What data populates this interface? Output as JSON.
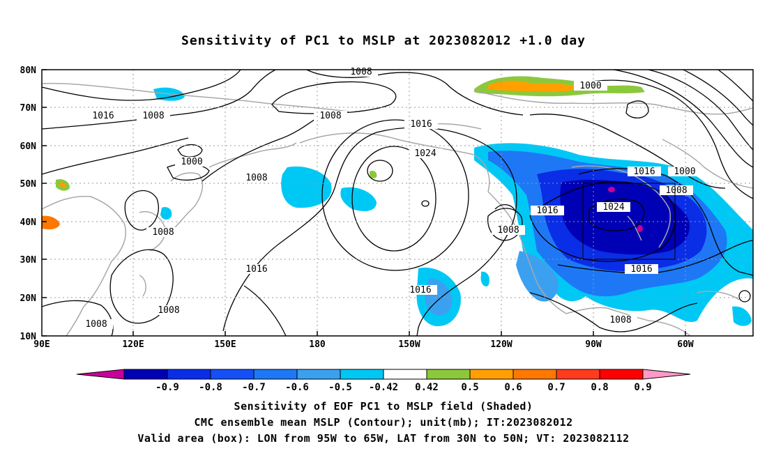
{
  "title": "Sensitivity of PC1 to MSLP at 2023082012 +1.0 day",
  "map": {
    "lat_labels": [
      "80N",
      "70N",
      "60N",
      "50N",
      "40N",
      "30N",
      "20N",
      "10N"
    ],
    "lon_labels": [
      "90E",
      "120E",
      "150E",
      "180",
      "150W",
      "120W",
      "90W",
      "60W"
    ],
    "box": {
      "lon_from": "95W",
      "lon_to": "65W",
      "lat_from": "30N",
      "lat_to": "50N"
    },
    "contour_labels": [
      {
        "id": "c1",
        "text": "1008"
      },
      {
        "id": "c2",
        "text": "1016"
      },
      {
        "id": "c3",
        "text": "1008"
      },
      {
        "id": "c4",
        "text": "1008"
      },
      {
        "id": "c5",
        "text": "1000"
      },
      {
        "id": "c6",
        "text": "1008"
      },
      {
        "id": "c7",
        "text": "1016"
      },
      {
        "id": "c8",
        "text": "1024"
      },
      {
        "id": "c9",
        "text": "1000"
      },
      {
        "id": "c10",
        "text": "1016"
      },
      {
        "id": "c11",
        "text": "1000"
      },
      {
        "id": "c12",
        "text": "1008"
      },
      {
        "id": "c13",
        "text": "1024"
      },
      {
        "id": "c14",
        "text": "1016"
      },
      {
        "id": "c15",
        "text": "1008"
      },
      {
        "id": "c16",
        "text": "1016"
      },
      {
        "id": "c17",
        "text": "1016"
      },
      {
        "id": "c18",
        "text": "1016"
      },
      {
        "id": "c19",
        "text": "1008"
      },
      {
        "id": "c20",
        "text": "1008"
      },
      {
        "id": "c21",
        "text": "1008"
      },
      {
        "id": "c22",
        "text": "1008"
      }
    ]
  },
  "colorbar": {
    "colors": [
      "#c8009a",
      "#0000b4",
      "#0a2de6",
      "#1450f5",
      "#1e78f5",
      "#3ca0f0",
      "#00c8f5",
      "#ffffff",
      "#8cc83c",
      "#ffa000",
      "#ff7800",
      "#ff3c1e",
      "#ff0000",
      "#ff99c8"
    ],
    "labels": [
      "-0.9",
      "-0.8",
      "-0.7",
      "-0.6",
      "-0.5",
      "-0.42",
      "0.42",
      "0.5",
      "0.6",
      "0.7",
      "0.8",
      "0.9"
    ]
  },
  "captions": {
    "line1": "Sensitivity of EOF PC1 to MSLP field (Shaded)",
    "line2": "CMC ensemble mean MSLP (Contour); unit(mb); IT:2023082012",
    "line3": "Valid area (box): LON from 95W to 65W, LAT from 30N to 50N; VT: 2023082112"
  }
}
